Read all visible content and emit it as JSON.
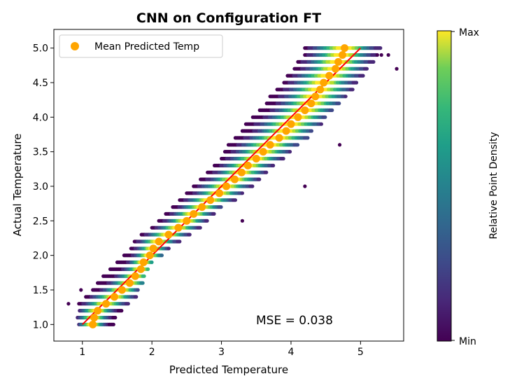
{
  "chart_data": {
    "type": "scatter",
    "title": "CNN on Configuration FT",
    "xlabel": "Predicted Temperature",
    "ylabel": "Actual Temperature",
    "xlim": [
      0.59,
      5.62
    ],
    "ylim": [
      0.76,
      5.27
    ],
    "xticks": [
      "1",
      "2",
      "3",
      "4",
      "5"
    ],
    "yticks": [
      "1.0",
      "1.5",
      "2.0",
      "2.5",
      "3.0",
      "3.5",
      "4.0",
      "4.5",
      "5.0"
    ],
    "grid": false,
    "legend": {
      "placement": "top-left",
      "entries": [
        "Mean Predicted Temp"
      ]
    },
    "annotation": "MSE = 0.038",
    "colorbar": {
      "label": "Relative Point Density",
      "top_label": "Max",
      "bottom_label": "Min",
      "colormap": "viridis"
    },
    "colors": {
      "mean_points": "#ffa500",
      "identity_line": "#ff0000"
    },
    "identity_line": [
      [
        1,
        1
      ],
      [
        5,
        5
      ]
    ],
    "scatter_rows": [
      {
        "y": 1.0,
        "x_range": [
          0.95,
          1.45
        ]
      },
      {
        "y": 1.1,
        "x_range": [
          0.93,
          1.48
        ]
      },
      {
        "y": 1.2,
        "x_range": [
          0.96,
          1.57
        ]
      },
      {
        "y": 1.3,
        "x_range": [
          0.95,
          1.66
        ]
      },
      {
        "y": 1.4,
        "x_range": [
          1.05,
          1.78
        ]
      },
      {
        "y": 1.5,
        "x_range": [
          1.15,
          1.8
        ]
      },
      {
        "y": 1.6,
        "x_range": [
          1.22,
          1.88
        ]
      },
      {
        "y": 1.7,
        "x_range": [
          1.3,
          1.9
        ]
      },
      {
        "y": 1.8,
        "x_range": [
          1.4,
          1.95
        ]
      },
      {
        "y": 1.9,
        "x_range": [
          1.5,
          2.0
        ]
      },
      {
        "y": 2.0,
        "x_range": [
          1.6,
          2.15
        ]
      },
      {
        "y": 2.1,
        "x_range": [
          1.7,
          2.25
        ]
      },
      {
        "y": 2.2,
        "x_range": [
          1.75,
          2.4
        ]
      },
      {
        "y": 2.3,
        "x_range": [
          1.85,
          2.55
        ]
      },
      {
        "y": 2.4,
        "x_range": [
          2.0,
          2.7
        ]
      },
      {
        "y": 2.5,
        "x_range": [
          2.1,
          2.8
        ]
      },
      {
        "y": 2.6,
        "x_range": [
          2.2,
          2.9
        ]
      },
      {
        "y": 2.7,
        "x_range": [
          2.3,
          3.0
        ]
      },
      {
        "y": 2.8,
        "x_range": [
          2.4,
          3.2
        ]
      },
      {
        "y": 2.9,
        "x_range": [
          2.5,
          3.3
        ]
      },
      {
        "y": 3.0,
        "x_range": [
          2.6,
          3.45
        ]
      },
      {
        "y": 3.1,
        "x_range": [
          2.7,
          3.55
        ]
      },
      {
        "y": 3.2,
        "x_range": [
          2.8,
          3.65
        ]
      },
      {
        "y": 3.3,
        "x_range": [
          2.9,
          3.75
        ]
      },
      {
        "y": 3.4,
        "x_range": [
          3.0,
          3.9
        ]
      },
      {
        "y": 3.5,
        "x_range": [
          3.05,
          4.0
        ]
      },
      {
        "y": 3.6,
        "x_range": [
          3.1,
          4.1
        ]
      },
      {
        "y": 3.7,
        "x_range": [
          3.2,
          4.25
        ]
      },
      {
        "y": 3.8,
        "x_range": [
          3.3,
          4.3
        ]
      },
      {
        "y": 3.9,
        "x_range": [
          3.35,
          4.45
        ]
      },
      {
        "y": 4.0,
        "x_range": [
          3.45,
          4.5
        ]
      },
      {
        "y": 4.1,
        "x_range": [
          3.55,
          4.6
        ]
      },
      {
        "y": 4.2,
        "x_range": [
          3.65,
          4.7
        ]
      },
      {
        "y": 4.3,
        "x_range": [
          3.7,
          4.8
        ]
      },
      {
        "y": 4.4,
        "x_range": [
          3.8,
          4.9
        ]
      },
      {
        "y": 4.5,
        "x_range": [
          3.9,
          4.95
        ]
      },
      {
        "y": 4.6,
        "x_range": [
          3.95,
          5.05
        ]
      },
      {
        "y": 4.7,
        "x_range": [
          4.05,
          5.1
        ]
      },
      {
        "y": 4.8,
        "x_range": [
          4.1,
          5.2
        ]
      },
      {
        "y": 4.9,
        "x_range": [
          4.2,
          5.25
        ]
      },
      {
        "y": 5.0,
        "x_range": [
          4.2,
          5.3
        ]
      }
    ],
    "outliers": [
      [
        0.8,
        1.3
      ],
      [
        0.98,
        1.5
      ],
      [
        5.52,
        4.7
      ],
      [
        5.4,
        4.9
      ],
      [
        5.3,
        4.9
      ],
      [
        4.7,
        3.6
      ],
      [
        4.2,
        3.0
      ],
      [
        3.3,
        2.5
      ]
    ],
    "mean_points": {
      "y": [
        1.0,
        1.1,
        1.2,
        1.3,
        1.4,
        1.5,
        1.6,
        1.7,
        1.8,
        1.9,
        2.0,
        2.1,
        2.2,
        2.3,
        2.4,
        2.5,
        2.6,
        2.7,
        2.8,
        2.9,
        3.0,
        3.1,
        3.2,
        3.3,
        3.4,
        3.5,
        3.6,
        3.7,
        3.8,
        3.9,
        4.0,
        4.1,
        4.2,
        4.3,
        4.4,
        4.5,
        4.6,
        4.7,
        4.8,
        4.9,
        5.0
      ],
      "x": [
        1.15,
        1.17,
        1.22,
        1.34,
        1.46,
        1.57,
        1.68,
        1.76,
        1.84,
        1.88,
        1.97,
        2.02,
        2.1,
        2.24,
        2.38,
        2.5,
        2.6,
        2.72,
        2.84,
        2.97,
        3.07,
        3.19,
        3.29,
        3.38,
        3.5,
        3.6,
        3.7,
        3.83,
        3.93,
        4.0,
        4.1,
        4.2,
        4.29,
        4.35,
        4.42,
        4.47,
        4.55,
        4.64,
        4.68,
        4.74,
        4.77
      ]
    }
  }
}
